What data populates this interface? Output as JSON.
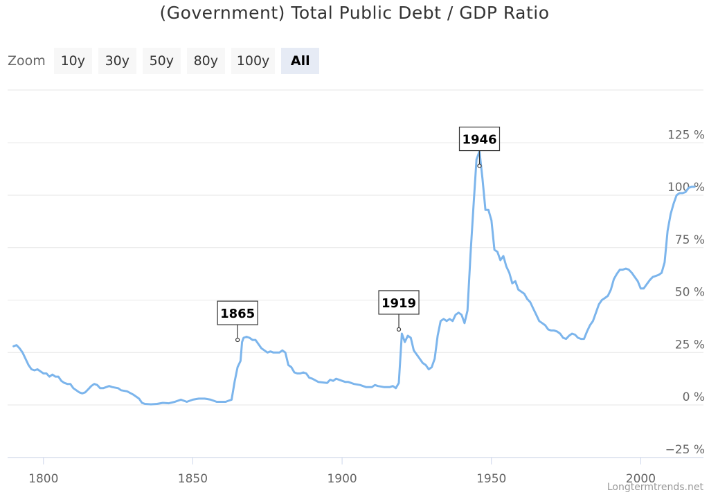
{
  "title": "(Government) Total Public Debt / GDP Ratio",
  "zoom": {
    "label": "Zoom",
    "buttons": [
      "10y",
      "30y",
      "50y",
      "80y",
      "100y",
      "All"
    ],
    "selected": "All"
  },
  "credit": "Longtermtrends.net",
  "colors": {
    "line": "#7cb5ec",
    "grid": "#e6e6e6",
    "axis_text": "#666666"
  },
  "chart_data": {
    "type": "line",
    "title": "(Government) Total Public Debt / GDP Ratio",
    "xlim": [
      1788,
      2021
    ],
    "ylim": [
      -25,
      150
    ],
    "x_ticks": [
      1800,
      1850,
      1900,
      1950,
      2000
    ],
    "y_ticks": [
      -25,
      0,
      25,
      50,
      75,
      100,
      125
    ],
    "y_tick_labels": [
      "−25 %",
      "0 %",
      "25 %",
      "50 %",
      "75 %",
      "100 %",
      "125 %"
    ],
    "grid": true,
    "y_axis_position": "right",
    "series": [
      {
        "values": [
          [
            1790,
            28
          ],
          [
            1791,
            28.5
          ],
          [
            1792,
            27
          ],
          [
            1793,
            25
          ],
          [
            1795,
            19
          ],
          [
            1796,
            17
          ],
          [
            1797,
            16.5
          ],
          [
            1798,
            17
          ],
          [
            1800,
            15
          ],
          [
            1801,
            15
          ],
          [
            1802,
            13.5
          ],
          [
            1803,
            14.5
          ],
          [
            1804,
            13.5
          ],
          [
            1805,
            13.5
          ],
          [
            1806,
            11.5
          ],
          [
            1807,
            10.5
          ],
          [
            1808,
            10
          ],
          [
            1809,
            10
          ],
          [
            1810,
            8
          ],
          [
            1811,
            7
          ],
          [
            1812,
            6
          ],
          [
            1813,
            5.5
          ],
          [
            1814,
            6
          ],
          [
            1815,
            7.5
          ],
          [
            1816,
            9
          ],
          [
            1817,
            10
          ],
          [
            1818,
            9.5
          ],
          [
            1819,
            8
          ],
          [
            1820,
            8
          ],
          [
            1822,
            9
          ],
          [
            1823,
            8.5
          ],
          [
            1825,
            8
          ],
          [
            1826,
            7
          ],
          [
            1828,
            6.5
          ],
          [
            1830,
            5
          ],
          [
            1832,
            3
          ],
          [
            1833,
            1
          ],
          [
            1834,
            0.5
          ],
          [
            1836,
            0.3
          ],
          [
            1838,
            0.5
          ],
          [
            1840,
            1
          ],
          [
            1842,
            0.8
          ],
          [
            1844,
            1.5
          ],
          [
            1846,
            2.5
          ],
          [
            1848,
            1.5
          ],
          [
            1850,
            2.5
          ],
          [
            1852,
            3
          ],
          [
            1854,
            3
          ],
          [
            1856,
            2.5
          ],
          [
            1858,
            1.5
          ],
          [
            1860,
            1.5
          ],
          [
            1861,
            1.5
          ],
          [
            1862,
            2
          ],
          [
            1863,
            2.5
          ],
          [
            1864,
            11
          ],
          [
            1865,
            18
          ],
          [
            1866,
            21
          ],
          [
            1866.5,
            30
          ],
          [
            1867,
            32
          ],
          [
            1868,
            32.5
          ],
          [
            1869,
            32
          ],
          [
            1870,
            31
          ],
          [
            1871,
            31
          ],
          [
            1872,
            29
          ],
          [
            1873,
            27
          ],
          [
            1874,
            26
          ],
          [
            1875,
            25
          ],
          [
            1876,
            25.5
          ],
          [
            1877,
            25
          ],
          [
            1878,
            25
          ],
          [
            1879,
            25
          ],
          [
            1880,
            26
          ],
          [
            1881,
            25
          ],
          [
            1882,
            19
          ],
          [
            1883,
            18
          ],
          [
            1884,
            15.5
          ],
          [
            1885,
            15
          ],
          [
            1886,
            15
          ],
          [
            1887,
            15.5
          ],
          [
            1888,
            15
          ],
          [
            1889,
            13
          ],
          [
            1890,
            12.5
          ],
          [
            1892,
            11
          ],
          [
            1895,
            10.5
          ],
          [
            1896,
            12
          ],
          [
            1897,
            11.5
          ],
          [
            1898,
            12.5
          ],
          [
            1900,
            11.5
          ],
          [
            1901,
            11
          ],
          [
            1902,
            11
          ],
          [
            1904,
            10
          ],
          [
            1906,
            9.5
          ],
          [
            1908,
            8.5
          ],
          [
            1910,
            8.5
          ],
          [
            1911,
            9.5
          ],
          [
            1912,
            9
          ],
          [
            1914,
            8.5
          ],
          [
            1916,
            8.5
          ],
          [
            1917,
            9
          ],
          [
            1918,
            8
          ],
          [
            1919,
            10.5
          ],
          [
            1920,
            34
          ],
          [
            1921,
            30
          ],
          [
            1922,
            33
          ],
          [
            1923,
            32
          ],
          [
            1924,
            26
          ],
          [
            1925,
            24
          ],
          [
            1926,
            22
          ],
          [
            1927,
            20
          ],
          [
            1928,
            19
          ],
          [
            1929,
            17
          ],
          [
            1930,
            18
          ],
          [
            1931,
            22
          ],
          [
            1932,
            33
          ],
          [
            1933,
            40
          ],
          [
            1934,
            41
          ],
          [
            1935,
            40
          ],
          [
            1936,
            41
          ],
          [
            1937,
            40
          ],
          [
            1938,
            43
          ],
          [
            1939,
            44
          ],
          [
            1940,
            43
          ],
          [
            1941,
            39
          ],
          [
            1942,
            45
          ],
          [
            1943,
            72
          ],
          [
            1944,
            95
          ],
          [
            1945,
            117
          ],
          [
            1946,
            121
          ],
          [
            1947,
            108
          ],
          [
            1948,
            93
          ],
          [
            1949,
            93
          ],
          [
            1950,
            88
          ],
          [
            1951,
            74
          ],
          [
            1952,
            73
          ],
          [
            1953,
            69
          ],
          [
            1954,
            71
          ],
          [
            1955,
            66
          ],
          [
            1956,
            63
          ],
          [
            1957,
            58
          ],
          [
            1958,
            59
          ],
          [
            1959,
            55
          ],
          [
            1960,
            54
          ],
          [
            1961,
            53
          ],
          [
            1962,
            50.5
          ],
          [
            1963,
            49
          ],
          [
            1964,
            46
          ],
          [
            1965,
            43
          ],
          [
            1966,
            40
          ],
          [
            1967,
            39
          ],
          [
            1968,
            38
          ],
          [
            1969,
            36
          ],
          [
            1970,
            35.5
          ],
          [
            1971,
            35.5
          ],
          [
            1972,
            35
          ],
          [
            1973,
            34
          ],
          [
            1974,
            32
          ],
          [
            1975,
            31.5
          ],
          [
            1976,
            33
          ],
          [
            1977,
            34
          ],
          [
            1978,
            33.5
          ],
          [
            1979,
            32
          ],
          [
            1980,
            31.5
          ],
          [
            1981,
            31.5
          ],
          [
            1982,
            35
          ],
          [
            1983,
            38
          ],
          [
            1984,
            40
          ],
          [
            1985,
            44
          ],
          [
            1986,
            48
          ],
          [
            1987,
            50
          ],
          [
            1988,
            51
          ],
          [
            1989,
            52
          ],
          [
            1990,
            55
          ],
          [
            1991,
            60
          ],
          [
            1992,
            62.5
          ],
          [
            1993,
            64.5
          ],
          [
            1994,
            64.5
          ],
          [
            1995,
            65
          ],
          [
            1996,
            64.5
          ],
          [
            1997,
            63
          ],
          [
            1998,
            61
          ],
          [
            1999,
            59
          ],
          [
            2000,
            55.5
          ],
          [
            2001,
            55.5
          ],
          [
            2002,
            57.5
          ],
          [
            2003,
            59.5
          ],
          [
            2004,
            61
          ],
          [
            2005,
            61.5
          ],
          [
            2006,
            62
          ],
          [
            2007,
            63
          ],
          [
            2008,
            68
          ],
          [
            2009,
            83
          ],
          [
            2010,
            91
          ],
          [
            2011,
            96
          ],
          [
            2012,
            100
          ],
          [
            2013,
            101
          ],
          [
            2014,
            101
          ],
          [
            2015,
            101.5
          ],
          [
            2016,
            103.5
          ],
          [
            2017,
            104
          ],
          [
            2018,
            104
          ]
        ]
      }
    ],
    "annotations": [
      {
        "label": "1865",
        "x": 1865,
        "y": 31
      },
      {
        "label": "1919",
        "x": 1919,
        "y": 36
      },
      {
        "label": "1946",
        "x": 1946,
        "y": 114
      }
    ]
  }
}
